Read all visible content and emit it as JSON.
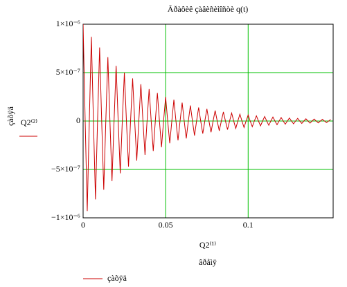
{
  "chart_data": {
    "type": "line",
    "title": "Ãðàôèê çàâèñèìîñòè q(t)",
    "ylabel": "çàõÿä",
    "ylabel_expr": "Q2⁽²⁾",
    "xlabel_expr": "Q2⁽¹⁾",
    "xlabel": "âðåìÿ",
    "xlim": [
      0,
      0.1515
    ],
    "xticks": [
      0,
      0.05,
      0.1
    ],
    "ylim": [
      -1e-06,
      1e-06
    ],
    "yticks": [
      {
        "value": 1e-06,
        "label": "1×10⁻⁶"
      },
      {
        "value": 5e-07,
        "label": "5×10⁻⁷"
      },
      0,
      {
        "value": -5e-07,
        "label": "−5×10⁻⁷"
      },
      {
        "value": -1e-06,
        "label": "−1×10⁻⁶"
      }
    ],
    "grid": true,
    "grid_color": "#00c000",
    "legend": "bottom-left",
    "x": [
      0,
      0.00125,
      0.0025,
      0.00375,
      0.005,
      0.00625,
      0.0075,
      0.00875,
      0.01,
      0.01125,
      0.0125,
      0.01375,
      0.015,
      0.01625,
      0.0175,
      0.01875,
      0.02,
      0.02125,
      0.0225,
      0.02375,
      0.025,
      0.02625,
      0.0275,
      0.02875,
      0.03,
      0.03125,
      0.0325,
      0.03375,
      0.035,
      0.03625,
      0.0375,
      0.03875,
      0.04,
      0.04125,
      0.0425,
      0.04375,
      0.045,
      0.04625,
      0.0475,
      0.04875,
      0.05,
      0.05125,
      0.0525,
      0.05375,
      0.055,
      0.05625,
      0.0575,
      0.05875,
      0.06,
      0.06125,
      0.0625,
      0.06375,
      0.065,
      0.06625,
      0.0675,
      0.06875,
      0.07,
      0.07125,
      0.0725,
      0.07375,
      0.075,
      0.07625,
      0.0775,
      0.07875,
      0.08,
      0.08125,
      0.0825,
      0.08375,
      0.085,
      0.08625,
      0.0875,
      0.08875,
      0.09,
      0.09125,
      0.0925,
      0.09375,
      0.095,
      0.09625,
      0.0975,
      0.09875,
      0.1,
      0.10125,
      0.1025,
      0.10375,
      0.105,
      0.10625,
      0.1075,
      0.10875,
      0.11,
      0.11125,
      0.1125,
      0.11375,
      0.115,
      0.11625,
      0.1175,
      0.11875,
      0.12,
      0.12125,
      0.1225,
      0.12375,
      0.125,
      0.12625,
      0.1275,
      0.12875,
      0.13,
      0.13125,
      0.1325,
      0.13375,
      0.135,
      0.13625,
      0.1375,
      0.13875,
      0.14,
      0.14125,
      0.1425,
      0.14375,
      0.145,
      0.14625,
      0.1475,
      0.14875,
      0.15
    ],
    "series": [
      {
        "name": "çàõÿä",
        "color": "#cc0000",
        "values": [
          1e-06,
          0,
          -9.3e-07,
          0,
          8.7e-07,
          0,
          -8.1e-07,
          0,
          7.6e-07,
          0,
          -7.1e-07,
          0,
          6.6e-07,
          0,
          -6.2e-07,
          0,
          5.7e-07,
          0,
          -5.4e-07,
          0,
          5e-07,
          0,
          -4.7e-07,
          0,
          4.4e-07,
          0,
          -4.1e-07,
          0,
          3.8e-07,
          0,
          -3.5e-07,
          0,
          3.3e-07,
          0,
          -3.1e-07,
          0,
          2.9e-07,
          0,
          -2.7e-07,
          0,
          2.5e-07,
          0,
          -2.3e-07,
          0,
          2.2e-07,
          0,
          -2e-07,
          0,
          1.9e-07,
          0,
          -1.8e-07,
          0,
          1.6e-07,
          0,
          -1.5e-07,
          0,
          1.4e-07,
          0,
          -1.3e-07,
          0,
          1.25e-07,
          0,
          -1.16e-07,
          0,
          1.08e-07,
          0,
          -1.01e-07,
          0,
          9.4e-08,
          0,
          -8.8e-08,
          0,
          8.2e-08,
          0,
          -7.7e-08,
          0,
          7.1e-08,
          0,
          -6.7e-08,
          0,
          6.2e-08,
          0,
          -5.8e-08,
          0,
          5.4e-08,
          0,
          -5e-08,
          0,
          4.7e-08,
          0,
          -4.4e-08,
          0,
          4.1e-08,
          0,
          -3.8e-08,
          0,
          3.6e-08,
          0,
          -3.3e-08,
          0,
          3.1e-08,
          0,
          -2.9e-08,
          0,
          2.7e-08,
          0,
          -2.5e-08,
          0,
          2.3e-08,
          0,
          -2.2e-08,
          0,
          2e-08,
          0,
          -1.9e-08,
          0,
          1.8e-08,
          0,
          -1.7e-08,
          0,
          1.6e-08
        ]
      }
    ]
  }
}
